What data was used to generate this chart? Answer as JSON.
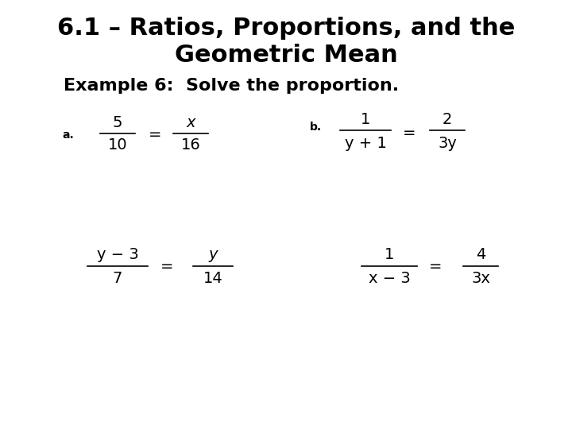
{
  "title_line1": "6.1 – Ratios, Proportions, and the",
  "title_line2": "Geometric Mean",
  "subtitle": "Example 6:  Solve the proportion.",
  "background_color": "#ffffff",
  "text_color": "#000000",
  "title_fontsize": 22,
  "subtitle_fontsize": 16,
  "math_fontsize": 14,
  "label_fontsize": 12,
  "figsize": [
    7.2,
    5.4
  ],
  "dpi": 100
}
